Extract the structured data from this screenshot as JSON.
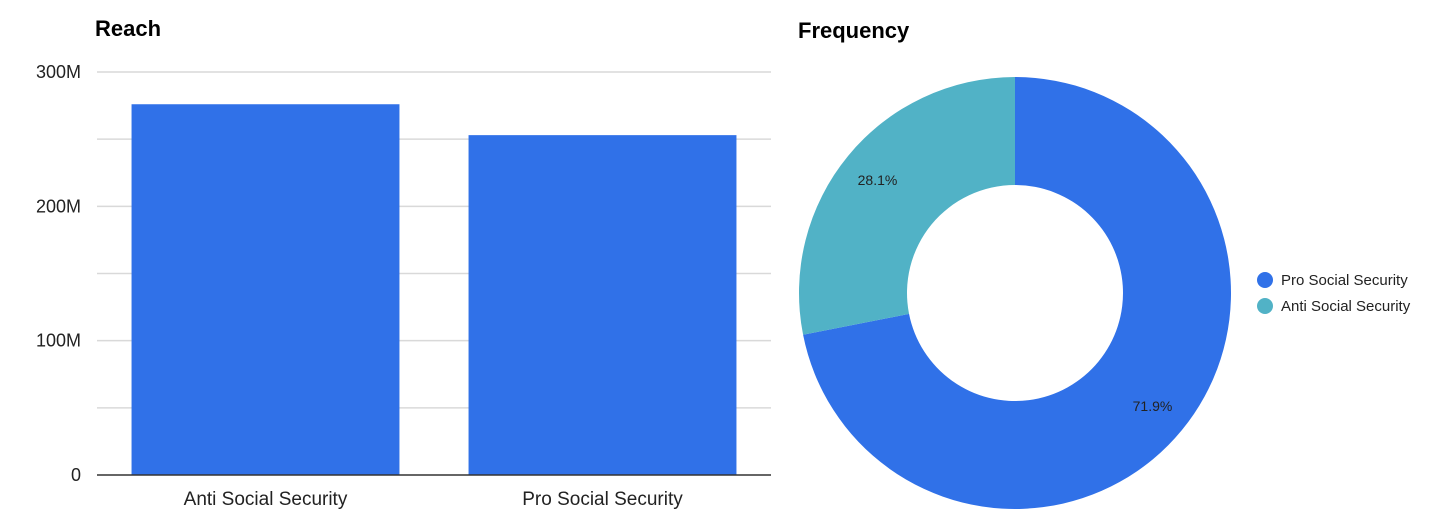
{
  "chart_data": [
    {
      "type": "bar",
      "title": "Reach",
      "categories": [
        "Anti Social Security",
        "Pro Social Security"
      ],
      "values": [
        276000000,
        253000000
      ],
      "yticks": [
        {
          "value": 0,
          "label": "0"
        },
        {
          "value": 100000000,
          "label": "100M"
        },
        {
          "value": 200000000,
          "label": "200M"
        },
        {
          "value": 300000000,
          "label": "300M"
        }
      ],
      "ylim": [
        0,
        300000000
      ],
      "grid": true,
      "color": "#3071e8"
    },
    {
      "type": "pie",
      "title": "Frequency",
      "donut": true,
      "slices": [
        {
          "name": "Pro Social Security",
          "value": 71.9,
          "label": "71.9%",
          "color": "#3071e8"
        },
        {
          "name": "Anti Social Security",
          "value": 28.1,
          "label": "28.1%",
          "color": "#51b2c6"
        }
      ],
      "legend": "right"
    }
  ]
}
